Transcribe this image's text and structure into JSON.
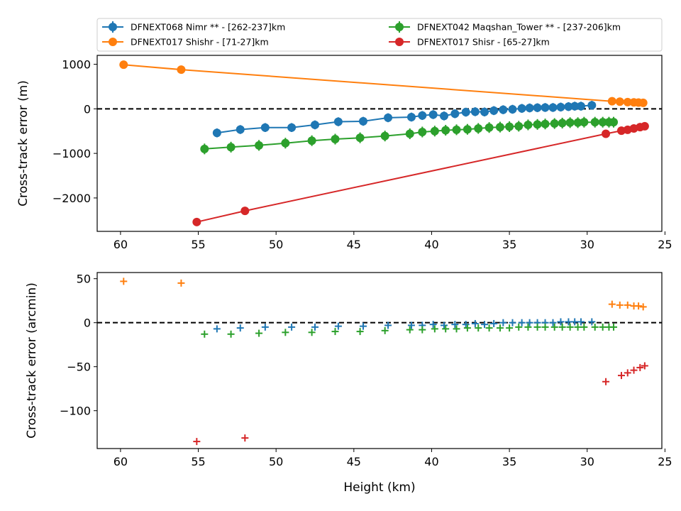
{
  "chart_data": [
    {
      "type": "scatter",
      "xlabel": "",
      "ylabel": "Cross-track error (m)",
      "xlim": [
        61.5,
        25.2
      ],
      "ylim": [
        -2750,
        1200
      ],
      "xticks": [
        60,
        55,
        50,
        45,
        40,
        35,
        30,
        25
      ],
      "yticks": [
        1000,
        0,
        -1000,
        -2000
      ],
      "ytick_labels": [
        "1000",
        "0",
        "−1000",
        "−2000"
      ],
      "zero_line": true,
      "legend": {
        "placement": "top, outside",
        "columns": 2
      },
      "series": [
        {
          "name": "DFNEXT068 Nimr **  - [262-237]km",
          "color": "#1f77b4",
          "marker": "circle-errorbar",
          "line": true,
          "x": [
            53.8,
            52.3,
            50.7,
            49.0,
            47.5,
            46.0,
            44.4,
            42.8,
            41.3,
            40.6,
            39.9,
            39.2,
            38.5,
            37.8,
            37.2,
            36.6,
            36.0,
            35.4,
            34.8,
            34.2,
            33.7,
            33.2,
            32.7,
            32.2,
            31.7,
            31.2,
            30.8,
            30.4,
            29.7
          ],
          "y": [
            -540,
            -465,
            -420,
            -420,
            -360,
            -290,
            -280,
            -200,
            -185,
            -150,
            -130,
            -160,
            -110,
            -75,
            -65,
            -70,
            -40,
            -20,
            -10,
            10,
            20,
            25,
            30,
            30,
            40,
            50,
            60,
            60,
            80
          ],
          "yerr": [
            100,
            100,
            100,
            100,
            100,
            100,
            100,
            100,
            100,
            100,
            100,
            100,
            100,
            100,
            100,
            100,
            100,
            100,
            100,
            100,
            100,
            100,
            100,
            100,
            100,
            100,
            100,
            100,
            100
          ]
        },
        {
          "name": "DFNEXT017 Shishr - [71-27]km",
          "color": "#ff7f0e",
          "marker": "circle",
          "line": true,
          "x": [
            59.8,
            56.1,
            28.4,
            27.9,
            27.4,
            27.0,
            26.7,
            26.4
          ],
          "y": [
            990,
            880,
            170,
            160,
            150,
            145,
            140,
            135
          ]
        },
        {
          "name": "DFNEXT042 Maqshan_Tower **  - [237-206]km",
          "color": "#2ca02c",
          "marker": "circle-errorbar",
          "line": true,
          "x": [
            54.6,
            52.9,
            51.1,
            49.4,
            47.7,
            46.2,
            44.6,
            43.0,
            41.4,
            40.6,
            39.8,
            39.1,
            38.4,
            37.7,
            37.0,
            36.3,
            35.6,
            35.0,
            34.4,
            33.8,
            33.2,
            32.7,
            32.1,
            31.6,
            31.1,
            30.6,
            30.2,
            29.5,
            29.0,
            28.6,
            28.3
          ],
          "y": [
            -900,
            -860,
            -820,
            -770,
            -715,
            -680,
            -650,
            -610,
            -560,
            -520,
            -500,
            -480,
            -470,
            -460,
            -440,
            -420,
            -410,
            -400,
            -390,
            -360,
            -350,
            -340,
            -330,
            -320,
            -310,
            -310,
            -300,
            -300,
            -300,
            -300,
            -300
          ],
          "yerr": [
            120,
            120,
            120,
            120,
            120,
            120,
            120,
            120,
            120,
            120,
            120,
            120,
            120,
            120,
            120,
            120,
            120,
            120,
            120,
            120,
            120,
            120,
            120,
            120,
            120,
            120,
            120,
            120,
            120,
            120,
            120
          ]
        },
        {
          "name": "DFNEXT017 Shisr - [65-27]km",
          "color": "#d62728",
          "marker": "circle",
          "line": true,
          "x": [
            55.1,
            52.0,
            28.8,
            27.8,
            27.4,
            27.0,
            26.6,
            26.3
          ],
          "y": [
            -2540,
            -2290,
            -560,
            -490,
            -470,
            -440,
            -410,
            -390
          ]
        }
      ]
    },
    {
      "type": "scatter",
      "xlabel": "Height (km)",
      "ylabel": "Cross-track error (arcmin)",
      "xlim": [
        61.5,
        25.2
      ],
      "ylim": [
        -143,
        57
      ],
      "xticks": [
        60,
        55,
        50,
        45,
        40,
        35,
        30,
        25
      ],
      "yticks": [
        50,
        0,
        -50,
        -100
      ],
      "ytick_labels": [
        "50",
        "0",
        "−50",
        "−100"
      ],
      "zero_line": true,
      "series": [
        {
          "name": "DFNEXT068 Nimr **  - [262-237]km",
          "color": "#1f77b4",
          "marker": "plus",
          "x": [
            53.8,
            52.3,
            50.7,
            49.0,
            47.5,
            46.0,
            44.4,
            42.8,
            41.3,
            40.6,
            39.9,
            39.2,
            38.5,
            37.8,
            37.2,
            36.6,
            36.0,
            35.4,
            34.8,
            34.2,
            33.7,
            33.2,
            32.7,
            32.2,
            31.7,
            31.2,
            30.8,
            30.4,
            29.7
          ],
          "y": [
            -7,
            -6,
            -5,
            -5,
            -5,
            -4,
            -4,
            -3,
            -3,
            -3,
            -2,
            -3,
            -2,
            -2,
            -1,
            -2,
            -1,
            0,
            0,
            0,
            0,
            0,
            0,
            0,
            1,
            1,
            1,
            1,
            1
          ]
        },
        {
          "name": "DFNEXT017 Shishr - [71-27]km",
          "color": "#ff7f0e",
          "marker": "plus",
          "x": [
            59.8,
            56.1,
            28.4,
            27.9,
            27.4,
            27.0,
            26.7,
            26.4
          ],
          "y": [
            47,
            45,
            21,
            20,
            20,
            19,
            19,
            18
          ]
        },
        {
          "name": "DFNEXT042 Maqshan_Tower **  - [237-206]km",
          "color": "#2ca02c",
          "marker": "plus",
          "x": [
            54.6,
            52.9,
            51.1,
            49.4,
            47.7,
            46.2,
            44.6,
            43.0,
            41.4,
            40.6,
            39.8,
            39.1,
            38.4,
            37.7,
            37.0,
            36.3,
            35.6,
            35.0,
            34.4,
            33.8,
            33.2,
            32.7,
            32.1,
            31.6,
            31.1,
            30.6,
            30.2,
            29.5,
            29.0,
            28.6,
            28.3
          ],
          "y": [
            -13,
            -13,
            -12,
            -11,
            -11,
            -10,
            -10,
            -9,
            -8,
            -8,
            -7,
            -7,
            -7,
            -6,
            -6,
            -6,
            -6,
            -6,
            -5,
            -5,
            -5,
            -5,
            -5,
            -5,
            -5,
            -5,
            -5,
            -5,
            -5,
            -5,
            -5
          ]
        },
        {
          "name": "DFNEXT017 Shisr - [65-27]km",
          "color": "#d62728",
          "marker": "plus",
          "x": [
            55.1,
            52.0,
            28.8,
            27.8,
            27.4,
            27.0,
            26.6,
            26.3
          ],
          "y": [
            -135,
            -131,
            -67,
            -60,
            -57,
            -54,
            -51,
            -49
          ]
        }
      ]
    }
  ]
}
